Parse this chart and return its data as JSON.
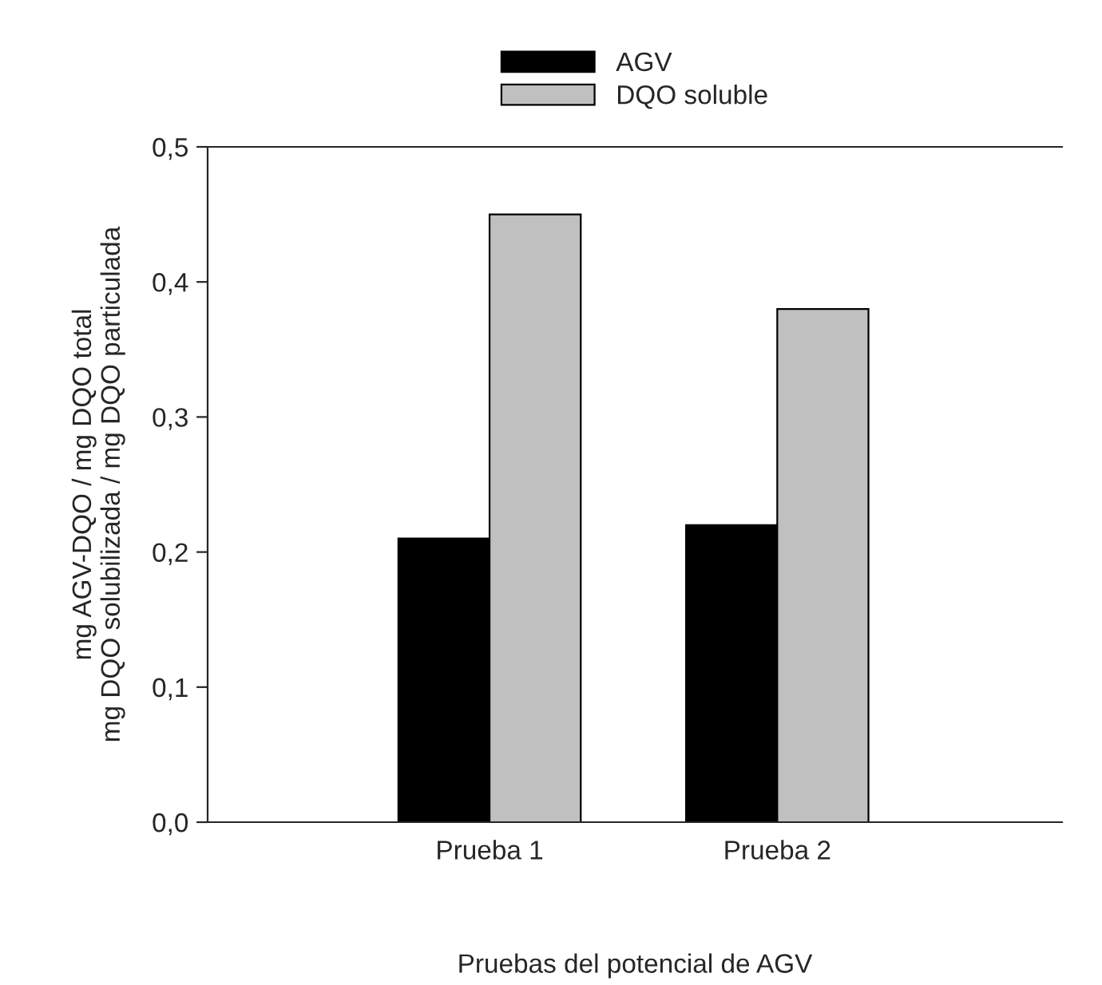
{
  "chart_data": {
    "type": "bar",
    "xlabel": "Pruebas del potencial de AGV",
    "ylabel": "mg AGV-DQO / mg DQO total\nmg DQO solubilizada / mg DQO particulada",
    "categories": [
      "Prueba 1",
      "Prueba 2"
    ],
    "series": [
      {
        "name": "AGV",
        "color": "#000000",
        "values": [
          0.21,
          0.22
        ]
      },
      {
        "name": "DQO soluble",
        "color": "#c0c0c0",
        "values": [
          0.45,
          0.38
        ]
      }
    ],
    "ylim": [
      0,
      0.5
    ],
    "yticks": [
      {
        "value": 0,
        "label": "0,0"
      },
      {
        "value": 0.1,
        "label": "0,1"
      },
      {
        "value": 0.2,
        "label": "0,2"
      },
      {
        "value": 0.3,
        "label": "0,3"
      },
      {
        "value": 0.4,
        "label": "0,4"
      },
      {
        "value": 0.5,
        "label": "0,5"
      }
    ],
    "legend": "top",
    "grid": false
  }
}
